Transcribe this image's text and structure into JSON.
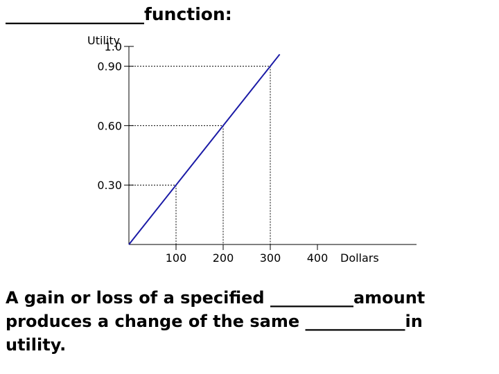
{
  "heading": {
    "blank": "________________",
    "word": "function:"
  },
  "chart_data": {
    "type": "line",
    "ylabel": "Utility",
    "xlabel": "Dollars",
    "xlim": [
      0,
      400
    ],
    "ylim": [
      0,
      1.0
    ],
    "xticks": [
      {
        "value": 100,
        "label": "100"
      },
      {
        "value": 200,
        "label": "200"
      },
      {
        "value": 300,
        "label": "300"
      },
      {
        "value": 400,
        "label": "400"
      }
    ],
    "yticks": [
      {
        "value": 1.0,
        "label": "1.0"
      },
      {
        "value": 0.9,
        "label": "0.90"
      },
      {
        "value": 0.6,
        "label": "0.60"
      },
      {
        "value": 0.3,
        "label": "0.30"
      }
    ],
    "series": [
      {
        "color": "#1a1aa6",
        "x": [
          0,
          320
        ],
        "y": [
          0,
          0.96
        ]
      }
    ],
    "reference_points": [
      {
        "x": 100,
        "y": 0.3
      },
      {
        "x": 200,
        "y": 0.6
      },
      {
        "x": 300,
        "y": 0.9
      }
    ],
    "grid": false
  },
  "body": {
    "line1_a": "A gain or loss of a specified ",
    "line1_blank": "__________",
    "line1_b": "amount",
    "line2_a": "produces a change of the same ",
    "line2_blank": "____________",
    "line2_b": "in",
    "line3": "utility."
  }
}
